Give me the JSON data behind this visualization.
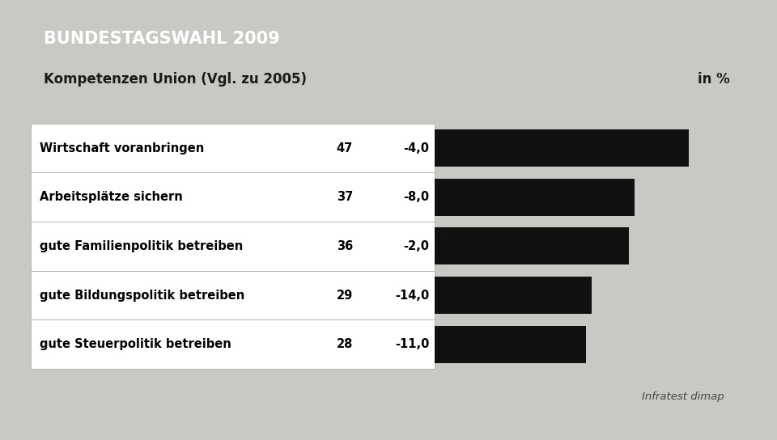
{
  "title": "BUNDESTAGSWAHL 2009",
  "subtitle": "Kompetenzen Union (Vgl. zu 2005)",
  "subtitle_right": "in %",
  "source": "Infratest dimap",
  "categories": [
    "Wirtschaft voranbringen",
    "Arbeitsplätze sichern",
    "gute Familienpolitik betreiben",
    "gute Bildungspolitik betreiben",
    "gute Steuerpolitik betreiben"
  ],
  "values": [
    47,
    37,
    36,
    29,
    28
  ],
  "changes": [
    "-4,0",
    "-8,0",
    "-2,0",
    "-14,0",
    "-11,0"
  ],
  "bar_color": "#111111",
  "title_bg_color": "#1a3f7a",
  "title_text_color": "#ffffff",
  "subtitle_bg_color": "#ffffff",
  "subtitle_text_color": "#1a1a1a",
  "background_color": "#c8c8c4",
  "row_border_color": "#aaaaaa",
  "bar_scale": 55
}
